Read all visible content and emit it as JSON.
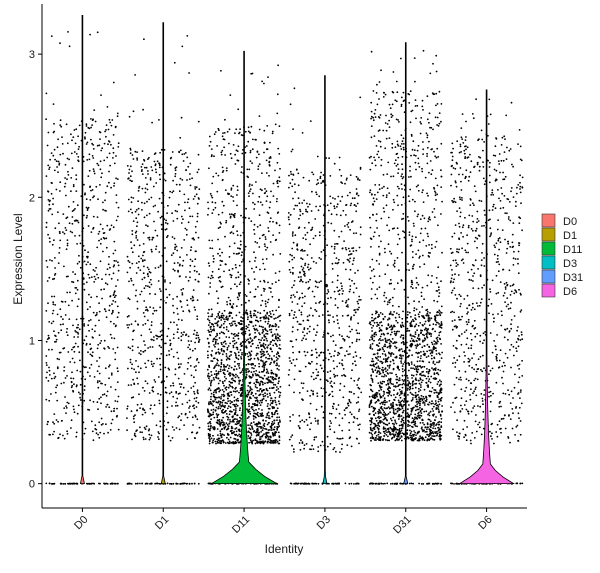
{
  "chart_data": {
    "type": "violin",
    "xlabel": "Identity",
    "ylabel": "Expression Level",
    "ylim": [
      -0.17,
      3.35
    ],
    "y_ticks": [
      0,
      1,
      2,
      3
    ],
    "categories": [
      "D0",
      "D1",
      "D11",
      "D3",
      "D31",
      "D6"
    ],
    "legend_position": "right",
    "grid": false,
    "series": [
      {
        "name": "D0",
        "color": "#F8766D",
        "max": 3.27,
        "violin_peak_width": 0.02,
        "violin_top": 0.05,
        "points_high": 2.55,
        "points_low": 0.3,
        "dense_high": 0
      },
      {
        "name": "D1",
        "color": "#B79F00",
        "max": 3.22,
        "violin_peak_width": 0.02,
        "violin_top": 0.05,
        "points_high": 2.35,
        "points_low": 0.3,
        "dense_high": 0
      },
      {
        "name": "D11",
        "color": "#00BA38",
        "max": 3.02,
        "violin_peak_width": 0.4,
        "violin_top": 0.14,
        "points_high": 2.5,
        "points_low": 0.28,
        "dense_high": 1.2
      },
      {
        "name": "D3",
        "color": "#00BFC4",
        "max": 2.85,
        "violin_peak_width": 0.02,
        "violin_top": 0.05,
        "points_high": 2.2,
        "points_low": 0.22,
        "dense_high": 0
      },
      {
        "name": "D31",
        "color": "#619CFF",
        "max": 3.08,
        "violin_peak_width": 0.02,
        "violin_top": 0.05,
        "points_high": 2.75,
        "points_low": 0.3,
        "dense_high": 1.2
      },
      {
        "name": "D6",
        "color": "#F564E3",
        "max": 2.75,
        "violin_peak_width": 0.33,
        "violin_top": 0.12,
        "points_high": 2.45,
        "points_low": 0.28,
        "dense_high": 0
      }
    ]
  }
}
